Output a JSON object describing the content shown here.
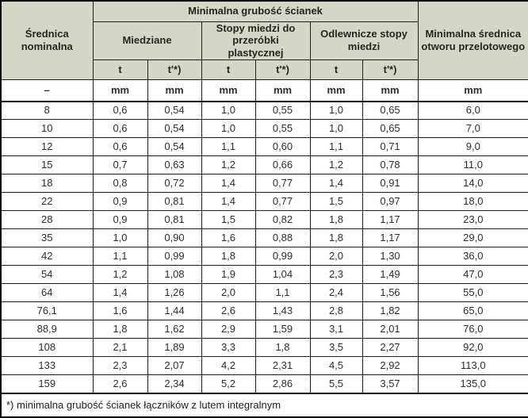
{
  "colors": {
    "header_bg": "#d5d7c6",
    "border": "#000000",
    "text": "#2e2e2e"
  },
  "table": {
    "header": {
      "diameter_label": "Średnica nominalna",
      "main_group_label": "Minimalna grubość ścianek",
      "bore_label": "Minimalna średnica otworu przelotowego",
      "groups": [
        "Miedziane",
        "Stopy miedzi do przeróbki plastycznej",
        "Odlewnicze stopy miedzi"
      ],
      "subcols": [
        "t",
        "t'*)",
        "t",
        "t'*)",
        "t",
        "t'*)"
      ]
    },
    "units_row": [
      "–",
      "mm",
      "mm",
      "mm",
      "mm",
      "mm",
      "mm",
      "mm"
    ],
    "rows": [
      [
        "8",
        "0,6",
        "0,54",
        "1,0",
        "0,55",
        "1,0",
        "0,65",
        "6,0"
      ],
      [
        "10",
        "0,6",
        "0,54",
        "1,0",
        "0,55",
        "1,0",
        "0,65",
        "7,0"
      ],
      [
        "12",
        "0,6",
        "0,54",
        "1,1",
        "0,60",
        "1,1",
        "0,71",
        "9,0"
      ],
      [
        "15",
        "0,7",
        "0,63",
        "1,2",
        "0,66",
        "1,2",
        "0,78",
        "11,0"
      ],
      [
        "18",
        "0,8",
        "0,72",
        "1,4",
        "0,77",
        "1,4",
        "0,91",
        "14,0"
      ],
      [
        "22",
        "0,9",
        "0,81",
        "1,4",
        "0,77",
        "1,5",
        "0,97",
        "18,0"
      ],
      [
        "28",
        "0,9",
        "0,81",
        "1,5",
        "0,82",
        "1,8",
        "1,17",
        "23,0"
      ],
      [
        "35",
        "1,0",
        "0,90",
        "1,6",
        "0,88",
        "1,8",
        "1,17",
        "29,0"
      ],
      [
        "42",
        "1,1",
        "0,99",
        "1,8",
        "0,99",
        "2,0",
        "1,30",
        "36,0"
      ],
      [
        "54",
        "1,2",
        "1,08",
        "1,9",
        "1,04",
        "2,3",
        "1,49",
        "47,0"
      ],
      [
        "64",
        "1,4",
        "1,26",
        "2,0",
        "1,1",
        "2,4",
        "1,56",
        "55,0"
      ],
      [
        "76,1",
        "1,6",
        "1,44",
        "2,6",
        "1,43",
        "2,8",
        "1,82",
        "65,0"
      ],
      [
        "88,9",
        "1,8",
        "1,62",
        "2,9",
        "1,59",
        "3,1",
        "2,01",
        "76,0"
      ],
      [
        "108",
        "2,1",
        "1,89",
        "3,3",
        "1,8",
        "3,5",
        "2,27",
        "92,0"
      ],
      [
        "133",
        "2,3",
        "2,07",
        "4,2",
        "2,31",
        "4,5",
        "2,92",
        "113,0"
      ],
      [
        "159",
        "2,6",
        "2,34",
        "5,2",
        "2,86",
        "5,5",
        "3,57",
        "135,0"
      ]
    ],
    "footnote": "*) minimalna grubość ścianek łączników z lutem integralnym"
  }
}
